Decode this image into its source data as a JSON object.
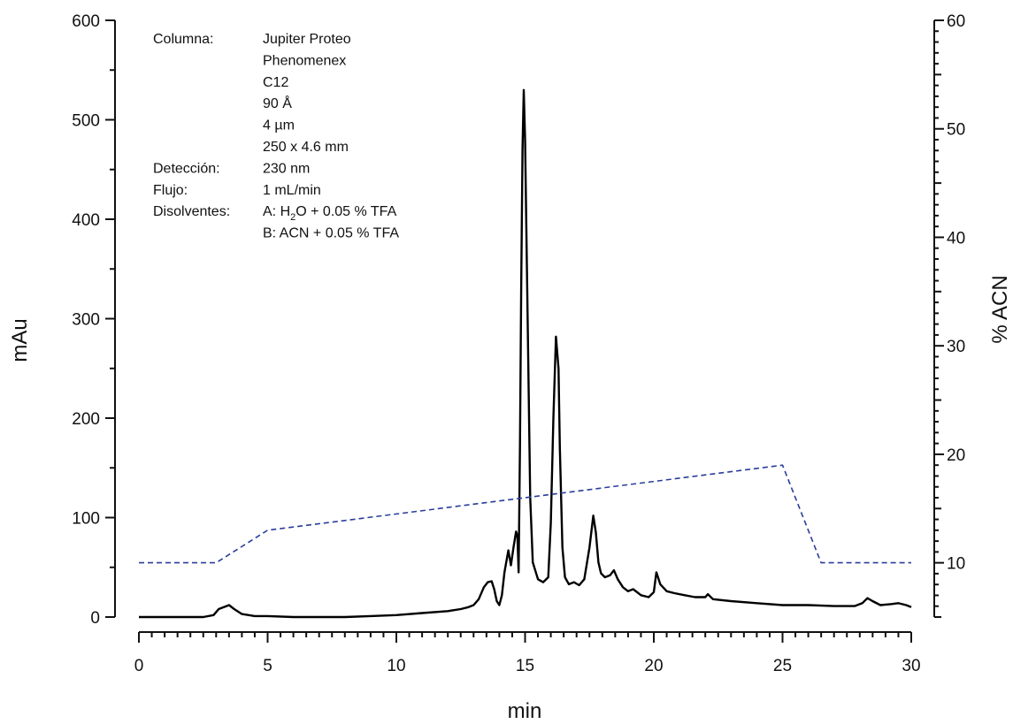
{
  "chart_data": {
    "type": "line",
    "xlabel": "min",
    "ylabel": "mAu",
    "y2label": "% ACN",
    "xlim": [
      0,
      30
    ],
    "ylim": [
      0,
      600
    ],
    "y2lim": [
      5,
      60
    ],
    "x_ticks": [
      "0",
      "5",
      "10",
      "15",
      "20",
      "25",
      "30"
    ],
    "y_ticks": [
      "0",
      "100",
      "200",
      "300",
      "400",
      "500",
      "600"
    ],
    "y2_ticks": [
      "10",
      "20",
      "30",
      "40",
      "50",
      "60"
    ],
    "grid": false,
    "series": [
      {
        "axis": "left",
        "color": "#000000",
        "style": "solid",
        "x": [
          0,
          2.5,
          2.9,
          3.1,
          3.3,
          3.5,
          3.7,
          4.0,
          4.5,
          5,
          6,
          7,
          8,
          9,
          10,
          11,
          12,
          12.5,
          12.8,
          13.0,
          13.2,
          13.4,
          13.55,
          13.7,
          13.8,
          13.9,
          14.0,
          14.1,
          14.2,
          14.35,
          14.45,
          14.55,
          14.65,
          14.7,
          14.75,
          14.8,
          14.85,
          14.9,
          14.95,
          15.0,
          15.1,
          15.2,
          15.3,
          15.5,
          15.7,
          15.9,
          16.0,
          16.1,
          16.2,
          16.3,
          16.35,
          16.45,
          16.55,
          16.7,
          16.9,
          17.1,
          17.3,
          17.5,
          17.65,
          17.75,
          17.85,
          17.95,
          18.1,
          18.3,
          18.45,
          18.6,
          18.8,
          19.0,
          19.2,
          19.5,
          19.8,
          20.0,
          20.1,
          20.25,
          20.5,
          20.8,
          21.2,
          21.6,
          22.0,
          22.1,
          22.3,
          23.0,
          24.0,
          25.0,
          26.0,
          27.0,
          27.8,
          28.1,
          28.3,
          28.5,
          28.8,
          29.2,
          29.5,
          29.8,
          30.0
        ],
        "y": [
          0,
          0,
          2,
          8,
          10,
          12,
          8,
          3,
          1,
          1,
          0,
          0,
          0,
          1,
          2,
          4,
          6,
          8,
          10,
          12,
          18,
          30,
          35,
          36,
          28,
          16,
          12,
          22,
          45,
          67,
          52,
          70,
          86,
          82,
          45,
          170,
          330,
          470,
          530,
          480,
          300,
          120,
          55,
          38,
          35,
          40,
          95,
          200,
          282,
          250,
          170,
          70,
          40,
          33,
          35,
          32,
          38,
          70,
          102,
          85,
          55,
          44,
          40,
          42,
          47,
          38,
          30,
          26,
          28,
          22,
          20,
          25,
          45,
          33,
          26,
          24,
          22,
          20,
          20,
          23,
          18,
          16,
          14,
          12,
          12,
          11,
          11,
          14,
          19,
          16,
          12,
          13,
          14,
          12,
          10
        ]
      },
      {
        "axis": "right",
        "color": "#2a3d9b",
        "style": "dashed",
        "x": [
          0,
          3,
          5,
          25,
          26.5,
          30
        ],
        "y": [
          10,
          10,
          13,
          19,
          10,
          10
        ]
      }
    ]
  },
  "info": {
    "rows": [
      {
        "label": "Columna:",
        "value": "Jupiter Proteo"
      },
      {
        "label": "",
        "value": "Phenomenex"
      },
      {
        "label": "",
        "value": "C12"
      },
      {
        "label": "",
        "value": "90 Å"
      },
      {
        "label": "",
        "value": "4 µm"
      },
      {
        "label": "",
        "value": "250 x 4.6 mm"
      },
      {
        "label": "Detección:",
        "value": "230 nm"
      },
      {
        "label": "Flujo:",
        "value": "1 mL/min"
      },
      {
        "label": "Disolventes:",
        "value": "A: H2O + 0.05 % TFA",
        "parts": [
          "A: H",
          "2",
          "O + 0.05 % TFA"
        ]
      },
      {
        "label": "",
        "value": "B: ACN + 0.05 % TFA"
      }
    ]
  }
}
